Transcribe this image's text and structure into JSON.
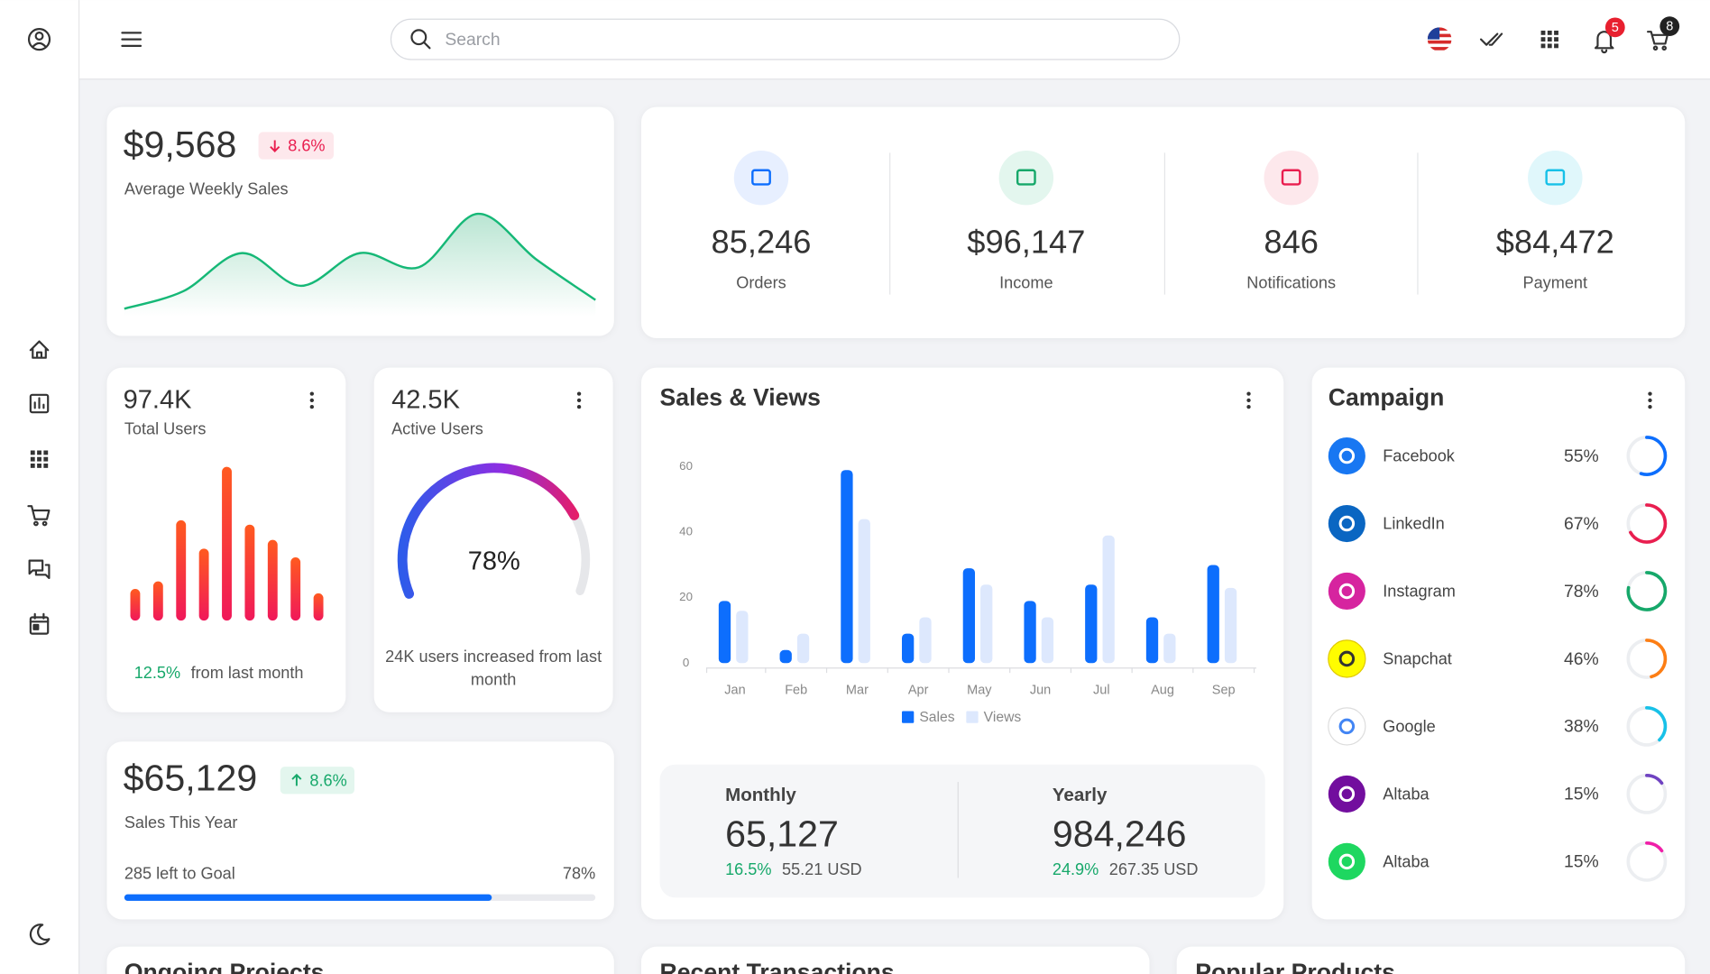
{
  "header": {
    "search_placeholder": "Search",
    "notification_count": "5",
    "cart_count": "8"
  },
  "weekly_sales": {
    "value": "$9,568",
    "change": "8.6%",
    "label": "Average Weekly Sales",
    "trend": [
      2,
      18,
      53,
      23,
      53,
      40,
      89,
      47,
      10
    ]
  },
  "stats": [
    {
      "value": "85,246",
      "label": "Orders"
    },
    {
      "value": "$96,147",
      "label": "Income"
    },
    {
      "value": "846",
      "label": "Notifications"
    },
    {
      "value": "$84,472",
      "label": "Payment"
    }
  ],
  "total_users": {
    "value": "97.4K",
    "label": "Total Users",
    "bars": [
      29,
      36,
      92,
      66,
      141,
      88,
      74,
      58,
      25
    ],
    "change": "12.5%",
    "change_text": "from last month"
  },
  "active_users": {
    "value": "42.5K",
    "label": "Active Users",
    "gauge": 78,
    "gauge_label": "78%",
    "note": "24K users increased from last month"
  },
  "sales_year": {
    "value": "$65,129",
    "change": "8.6%",
    "label": "Sales This Year",
    "goal_text": "285 left to Goal",
    "progress": 78,
    "progress_label": "78%"
  },
  "sales_views": {
    "type": "bar",
    "title": "Sales & Views",
    "categories": [
      "Jan",
      "Feb",
      "Mar",
      "Apr",
      "May",
      "Jun",
      "Jul",
      "Aug",
      "Sep"
    ],
    "series": [
      {
        "name": "Sales",
        "color": "#0d6efd",
        "values": [
          19,
          4,
          59,
          9,
          29,
          19,
          24,
          14,
          30
        ]
      },
      {
        "name": "Views",
        "color": "#dde8fd",
        "values": [
          16,
          9,
          44,
          14,
          24,
          14,
          39,
          9,
          23
        ]
      }
    ],
    "ylim": [
      0,
      60
    ],
    "yticks": [
      0,
      20,
      40,
      60
    ],
    "summary": [
      {
        "label": "Monthly",
        "value": "65,127",
        "change": "16.5%",
        "amount": "55.21 USD"
      },
      {
        "label": "Yearly",
        "value": "984,246",
        "change": "24.9%",
        "amount": "267.35 USD"
      }
    ]
  },
  "campaign": {
    "title": "Campaign",
    "items": [
      {
        "name": "Facebook",
        "percent": 55,
        "percent_label": "55%",
        "color": "#0d6efd"
      },
      {
        "name": "LinkedIn",
        "percent": 67,
        "percent_label": "67%",
        "color": "#e91e4f"
      },
      {
        "name": "Instagram",
        "percent": 78,
        "percent_label": "78%",
        "color": "#16a86a"
      },
      {
        "name": "Snapchat",
        "percent": 46,
        "percent_label": "46%",
        "color": "#fd7e14"
      },
      {
        "name": "Google",
        "percent": 38,
        "percent_label": "38%",
        "color": "#17c1e8"
      },
      {
        "name": "Altaba",
        "percent": 15,
        "percent_label": "15%",
        "color": "#6f42c1"
      },
      {
        "name": "Altaba",
        "percent": 15,
        "percent_label": "15%",
        "color": "#f01fa8"
      }
    ]
  },
  "sections": [
    "Ongoing Projects",
    "Recent Transactions",
    "Popular Products"
  ]
}
